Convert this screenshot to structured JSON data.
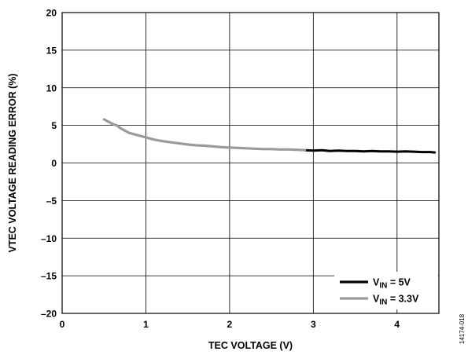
{
  "chart_data": {
    "type": "line",
    "title": "",
    "xlabel": "TEC VOLTAGE (V)",
    "ylabel": "VTEC VOLTAGE READING ERROR (%)",
    "xlim": [
      0,
      4.5
    ],
    "ylim": [
      -20,
      20
    ],
    "xticks": [
      0,
      1,
      2,
      3,
      4
    ],
    "yticks": [
      -20,
      -15,
      -10,
      -5,
      0,
      5,
      10,
      15,
      20
    ],
    "grid": true,
    "legend_position": "bottom-right",
    "series": [
      {
        "name_parts": [
          "V",
          "IN",
          " = 5V"
        ],
        "color": "#000000",
        "x": [
          2.9,
          3.0,
          3.1,
          3.2,
          3.3,
          3.4,
          3.5,
          3.6,
          3.7,
          3.8,
          3.9,
          4.0,
          4.1,
          4.2,
          4.3,
          4.4,
          4.45
        ],
        "y": [
          1.7,
          1.65,
          1.7,
          1.6,
          1.65,
          1.6,
          1.6,
          1.55,
          1.6,
          1.55,
          1.55,
          1.5,
          1.55,
          1.5,
          1.45,
          1.45,
          1.4
        ]
      },
      {
        "name_parts": [
          "V",
          "IN",
          " = 3.3V"
        ],
        "color": "#9a9a9a",
        "x": [
          0.5,
          0.55,
          0.6,
          0.65,
          0.7,
          0.8,
          0.9,
          1.0,
          1.1,
          1.2,
          1.3,
          1.4,
          1.5,
          1.6,
          1.7,
          1.8,
          1.9,
          2.0,
          2.1,
          2.2,
          2.3,
          2.4,
          2.5,
          2.6,
          2.7,
          2.8,
          2.9
        ],
        "y": [
          5.8,
          5.5,
          5.2,
          5.0,
          4.6,
          4.0,
          3.7,
          3.4,
          3.1,
          2.9,
          2.75,
          2.6,
          2.45,
          2.35,
          2.3,
          2.2,
          2.1,
          2.05,
          2.0,
          1.95,
          1.9,
          1.85,
          1.85,
          1.8,
          1.8,
          1.75,
          1.7
        ]
      }
    ]
  },
  "figure_id": "14174-018"
}
